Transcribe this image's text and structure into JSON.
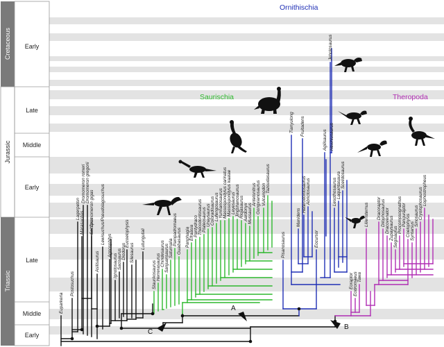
{
  "timescale": {
    "periods": [
      {
        "id": "cretaceous",
        "label": "Cretaceous",
        "epochs": [
          "Early"
        ]
      },
      {
        "id": "jurassic",
        "label": "Jurassic",
        "epochs": [
          "Late",
          "Middle",
          "Early"
        ]
      },
      {
        "id": "triassic",
        "label": "Triassic",
        "epochs": [
          "Late",
          "Middle",
          "Early"
        ]
      }
    ]
  },
  "clades": {
    "saurischia": {
      "label": "Saurischia",
      "color": "#2db82d"
    },
    "ornithischia": {
      "label": "Ornithischia",
      "color": "#1f2fb5"
    },
    "theropoda": {
      "label": "Theropoda",
      "color": "#b02db3"
    },
    "outgroups": {
      "color": "#111111"
    }
  },
  "nodes": {
    "a": "A",
    "b": "B",
    "c": "C"
  },
  "taxa": {
    "outgroups": [
      "Euparkeria",
      "Postosuchus",
      "Lagerpeton",
      "Dromomeron romeri",
      "Dromomeron gregorii",
      "Dromomeron gigas",
      "Marasuchus",
      "Saltopus",
      "Lewisuchus/Pseudolagosuchus",
      "Agnosphitys",
      "Asilisaurus",
      "Ignotosaurus",
      "Sacisaurus",
      "Diodorus",
      "Eucoelophysis",
      "Silesaurus",
      "Lutungutali"
    ],
    "saurischia": [
      "Staurikosaurus",
      "Herrerasaurus",
      "Chindesaurus",
      "Sanjuansaurus",
      "Saturnalia",
      "Pampadromaeus",
      "Guaibasaurus",
      "Panphagia",
      "Efraasia",
      "Pantydraco",
      "Thecodontosaurus",
      "Plateosaurus",
      "Unaysaurus",
      "Coloradisaurus",
      "Lufengosaurus",
      "Yunnanosaurus",
      "Massospondylus carinatus",
      "Massospondylus kaalae",
      "Leyesaurus",
      "Jingshanosaurus",
      "Riojasaurus",
      "Aardonyx",
      "Mussaurus",
      "Antetonitrus",
      "Gongxianosaurus",
      "Vulcanodon",
      "Tazoudasaurus"
    ],
    "ornithischia": [
      "Pisanosaurus",
      "Tianyulong",
      "Fruitadens",
      "Manidens",
      "Abrictosaurus",
      "Heterodontosaurus",
      "Eocursor",
      "Jeholosaurus",
      "Agilisaurus",
      "Hexinlusaurus",
      "Lesothosaurus",
      "Laquintasaura",
      "Scelidosaurus"
    ],
    "theropoda": [
      "Eoraptor",
      "Eodromaeus",
      "Tawa",
      "Liliensternus",
      "Dracoraptor",
      "Dilophosaurus",
      "Dracovenator",
      "Zupaysaurus",
      "Segisaurus",
      "Procompsognathus",
      "Panguraptor",
      "Coelophysis",
      "Syntarsus",
      "Sinosaurus",
      "Cryolophosaurus",
      "Lophostropheus"
    ]
  }
}
